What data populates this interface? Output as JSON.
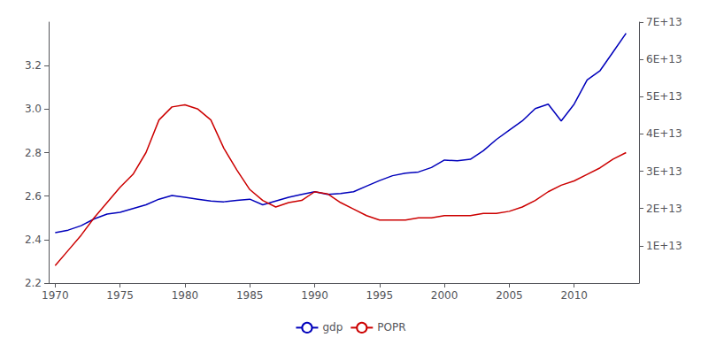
{
  "chart_data": {
    "type": "line",
    "x": [
      1970,
      1971,
      1972,
      1973,
      1974,
      1975,
      1976,
      1977,
      1978,
      1979,
      1980,
      1981,
      1982,
      1983,
      1984,
      1985,
      1986,
      1987,
      1988,
      1989,
      1990,
      1991,
      1992,
      1993,
      1994,
      1995,
      1996,
      1997,
      1998,
      1999,
      2000,
      2001,
      2002,
      2003,
      2004,
      2005,
      2006,
      2007,
      2008,
      2009,
      2010,
      2011,
      2012,
      2013,
      2014
    ],
    "series": [
      {
        "name": "gdp",
        "color": "#0000bb",
        "axis": "y2",
        "values": [
          13500000000000.0,
          14200000000000.0,
          15400000000000.0,
          17200000000000.0,
          18500000000000.0,
          19000000000000.0,
          20000000000000.0,
          21000000000000.0,
          22500000000000.0,
          23500000000000.0,
          23000000000000.0,
          22500000000000.0,
          22000000000000.0,
          21800000000000.0,
          22200000000000.0,
          22500000000000.0,
          21000000000000.0,
          22000000000000.0,
          23000000000000.0,
          23800000000000.0,
          24500000000000.0,
          23800000000000.0,
          24000000000000.0,
          24500000000000.0,
          26000000000000.0,
          27500000000000.0,
          28800000000000.0,
          29500000000000.0,
          29800000000000.0,
          31000000000000.0,
          33000000000000.0,
          32800000000000.0,
          33200000000000.0,
          35500000000000.0,
          38500000000000.0,
          41000000000000.0,
          43500000000000.0,
          46800000000000.0,
          48000000000000.0,
          43500000000000.0,
          48000000000000.0,
          54500000000000.0,
          57000000000000.0,
          62000000000000.0,
          67000000000000.0
        ]
      },
      {
        "name": "POPR",
        "color": "#cc0000",
        "values": [
          2.28,
          2.35,
          2.42,
          2.5,
          2.57,
          2.64,
          2.7,
          2.8,
          2.95,
          3.01,
          3.02,
          3.0,
          2.95,
          2.82,
          2.72,
          2.63,
          2.58,
          2.55,
          2.57,
          2.58,
          2.62,
          2.61,
          2.57,
          2.54,
          2.51,
          2.49,
          2.49,
          2.49,
          2.5,
          2.5,
          2.51,
          2.51,
          2.51,
          2.52,
          2.52,
          2.53,
          2.55,
          2.58,
          2.62,
          2.65,
          2.67,
          2.7,
          2.73,
          2.77,
          2.8
        ]
      }
    ],
    "xlim": [
      1969.5,
      2015.0
    ],
    "xticks": [
      1970,
      1975,
      1980,
      1985,
      1990,
      1995,
      2000,
      2005,
      2010
    ],
    "ylim": [
      2.2,
      3.4
    ],
    "yticks": [
      2.2,
      2.4,
      2.6,
      2.8,
      {
        "value": 3.0,
        "label": "3.0"
      },
      3.2
    ],
    "y2lim": [
      0,
      70000000000000.0
    ],
    "y2ticks": [
      {
        "value": 10000000000000.0,
        "label": "1E+13"
      },
      {
        "value": 20000000000000.0,
        "label": "2E+13"
      },
      {
        "value": 30000000000000.0,
        "label": "3E+13"
      },
      {
        "value": 40000000000000.0,
        "label": "4E+13"
      },
      {
        "value": 50000000000000.0,
        "label": "5E+13"
      },
      {
        "value": 60000000000000.0,
        "label": "6E+13"
      },
      {
        "value": 70000000000000.0,
        "label": "7E+13"
      }
    ],
    "grid": false,
    "legend": "bottom"
  }
}
